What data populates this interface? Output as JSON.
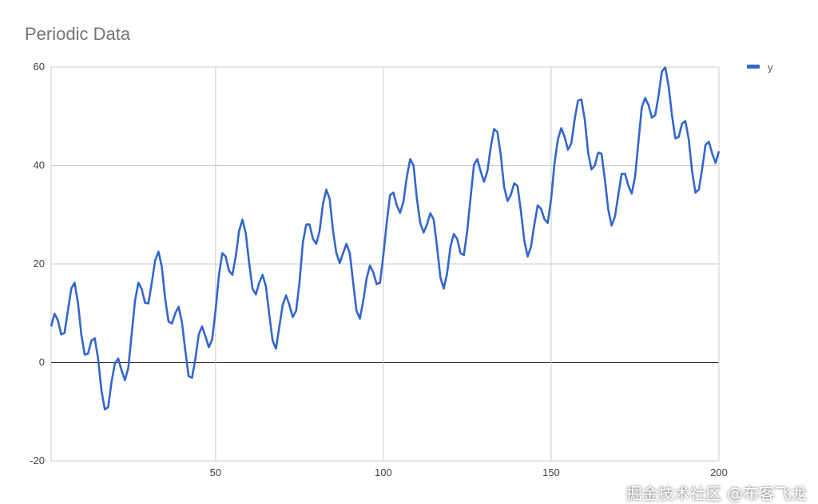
{
  "chart_data": {
    "type": "line",
    "title": "Periodic Data",
    "xlabel": "",
    "ylabel": "",
    "xlim": [
      1,
      200
    ],
    "ylim": [
      -20,
      60
    ],
    "x_ticks": [
      50,
      100,
      150,
      200
    ],
    "y_ticks": [
      -20,
      0,
      20,
      40,
      60
    ],
    "grid": true,
    "legend": "right",
    "series": [
      {
        "name": "y",
        "color": "#3366cc",
        "x_start": 1,
        "values": [
          7.3,
          9.9,
          8.6,
          5.7,
          6.0,
          10.5,
          15.0,
          16.2,
          12.1,
          5.7,
          1.6,
          1.8,
          4.4,
          4.9,
          0.8,
          -5.7,
          -9.5,
          -9.1,
          -4.0,
          -0.2,
          0.8,
          -1.6,
          -3.6,
          -1.1,
          5.7,
          12.5,
          16.2,
          14.9,
          12.1,
          12.0,
          16.2,
          20.7,
          22.5,
          19.4,
          12.9,
          8.3,
          7.9,
          10.0,
          11.3,
          8.1,
          2.4,
          -2.8,
          -3.1,
          0.8,
          5.7,
          7.3,
          5.3,
          3.1,
          4.7,
          10.5,
          17.8,
          22.2,
          21.5,
          18.6,
          17.8,
          21.5,
          26.7,
          29.0,
          26.2,
          20.2,
          15.0,
          13.8,
          16.2,
          17.8,
          15.4,
          9.7,
          4.4,
          2.8,
          7.3,
          11.7,
          13.6,
          11.7,
          9.2,
          10.5,
          16.2,
          24.3,
          28.0,
          28.0,
          25.1,
          24.1,
          26.7,
          32.2,
          35.1,
          33.2,
          26.7,
          22.2,
          20.2,
          22.2,
          24.1,
          22.2,
          16.2,
          10.5,
          8.9,
          12.5,
          17.0,
          19.7,
          18.3,
          15.9,
          16.2,
          21.8,
          28.3,
          34.0,
          34.5,
          31.9,
          30.4,
          32.7,
          37.7,
          41.3,
          40.0,
          33.2,
          28.3,
          26.4,
          28.0,
          30.3,
          29.0,
          23.5,
          17.3,
          15.0,
          18.1,
          23.5,
          26.1,
          25.1,
          22.2,
          21.8,
          26.7,
          33.5,
          40.1,
          41.3,
          38.8,
          36.7,
          38.8,
          43.7,
          47.4,
          46.8,
          42.1,
          35.6,
          32.8,
          34.0,
          36.4,
          35.8,
          30.7,
          24.8,
          21.5,
          23.5,
          28.0,
          31.9,
          31.2,
          29.1,
          28.3,
          33.2,
          40.5,
          45.3,
          47.6,
          45.8,
          43.2,
          44.5,
          49.4,
          53.2,
          53.4,
          49.4,
          42.6,
          39.2,
          40.0,
          42.6,
          42.4,
          37.2,
          31.1,
          27.8,
          29.6,
          34.0,
          38.3,
          38.3,
          35.9,
          34.3,
          37.7,
          44.8,
          51.8,
          53.7,
          52.3,
          49.7,
          50.2,
          54.2,
          59.1,
          59.9,
          56.1,
          50.2,
          45.5,
          45.8,
          48.5,
          49.0,
          45.3,
          38.8,
          34.5,
          35.1,
          39.3,
          44.2,
          44.8,
          42.4,
          40.5,
          42.9
        ]
      }
    ]
  },
  "watermark": "掘金技术社区 @布客飞龙"
}
